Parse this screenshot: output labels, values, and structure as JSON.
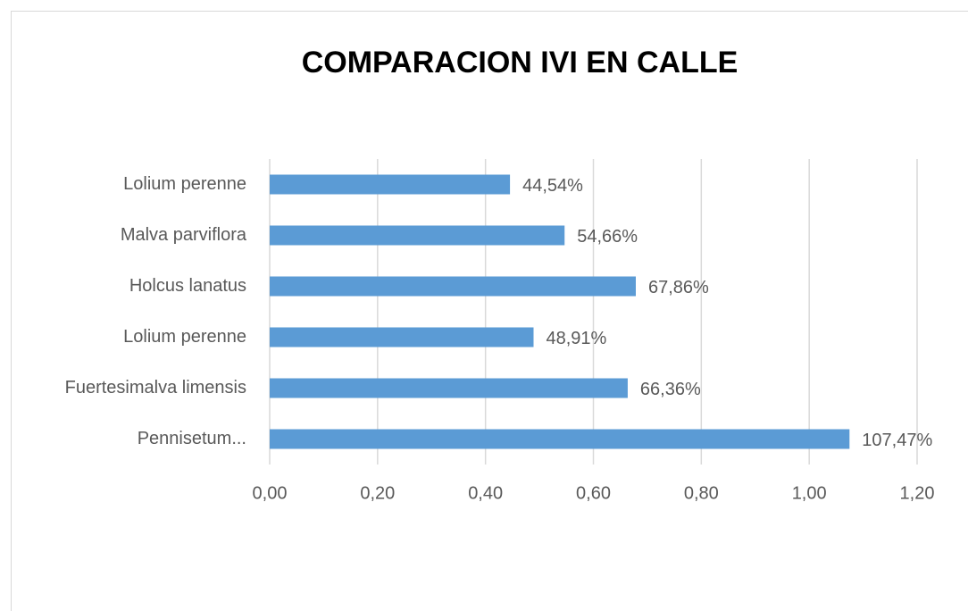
{
  "chart_data": {
    "type": "bar",
    "orientation": "horizontal",
    "title": "COMPARACION  IVI EN CALLE",
    "categories": [
      "Lolium perenne",
      "Malva parviflora",
      "Holcus lanatus",
      "Lolium perenne",
      "Fuertesimalva limensis",
      "Pennisetum..."
    ],
    "values": [
      0.4454,
      0.5466,
      0.6786,
      0.4891,
      0.6636,
      1.0747
    ],
    "value_labels": [
      "44,54%",
      "54,66%",
      "67,86%",
      "48,91%",
      "66,36%",
      "107,47%"
    ],
    "color": "#5b9bd5",
    "xlim": [
      0,
      1.2
    ],
    "xticks": [
      {
        "value": 0,
        "label": "0,00"
      },
      {
        "value": 0.2,
        "label": "0,20"
      },
      {
        "value": 0.4,
        "label": "0,40"
      },
      {
        "value": 0.6,
        "label": "0,60"
      },
      {
        "value": 0.8,
        "label": "0,80"
      },
      {
        "value": 1,
        "label": "1,00"
      },
      {
        "value": 1.2,
        "label": "1,20"
      }
    ],
    "grid": true
  }
}
